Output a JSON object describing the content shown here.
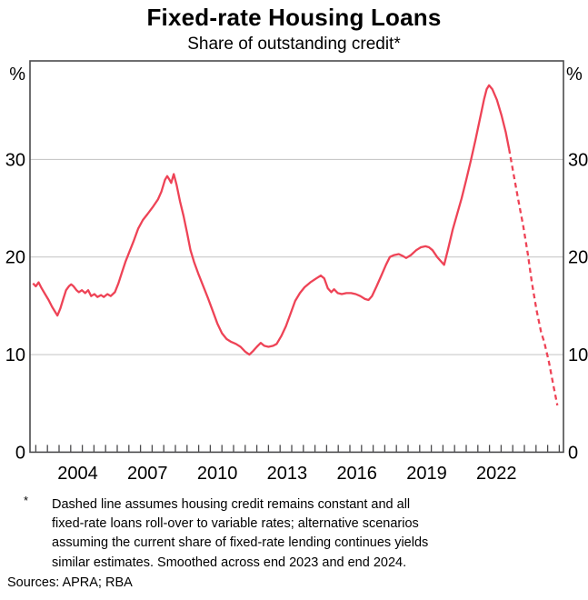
{
  "header": {
    "title": "Fixed-rate Housing Loans",
    "subtitle": "Share of outstanding credit*"
  },
  "chart_data": {
    "type": "line",
    "title": "Fixed-rate Housing Loans",
    "subtitle": "Share of outstanding credit*",
    "unit_label": "%",
    "xlabel": "",
    "ylabel": "%",
    "x_range": [
      2002.45,
      2025.38
    ],
    "y_range": [
      0,
      40.1
    ],
    "y_gridlines": [
      10,
      20,
      30
    ],
    "y_tick_labels": [
      0,
      10,
      20,
      30
    ],
    "x_tick_labels": [
      2004,
      2007,
      2010,
      2013,
      2016,
      2019,
      2022
    ],
    "x_minor_ticks": {
      "start": 2002.7,
      "end": 2025.2,
      "step": 0.5
    },
    "grid_on": true,
    "legend": "none",
    "line_color": "#EE4356",
    "grid_color": "#C9C9C9",
    "axis_color": "#4B4B4D",
    "series": [
      {
        "name": "Fixed-rate share of outstanding housing credit (actual)",
        "style": "solid",
        "points": [
          [
            2002.58,
            17.3
          ],
          [
            2002.7,
            17.0
          ],
          [
            2002.82,
            17.4
          ],
          [
            2002.95,
            16.8
          ],
          [
            2003.1,
            16.2
          ],
          [
            2003.25,
            15.6
          ],
          [
            2003.4,
            14.9
          ],
          [
            2003.55,
            14.3
          ],
          [
            2003.63,
            14.0
          ],
          [
            2003.75,
            14.7
          ],
          [
            2003.88,
            15.7
          ],
          [
            2004.0,
            16.6
          ],
          [
            2004.12,
            17.0
          ],
          [
            2004.22,
            17.2
          ],
          [
            2004.32,
            17.0
          ],
          [
            2004.45,
            16.6
          ],
          [
            2004.55,
            16.4
          ],
          [
            2004.68,
            16.6
          ],
          [
            2004.82,
            16.3
          ],
          [
            2004.95,
            16.6
          ],
          [
            2005.08,
            16.0
          ],
          [
            2005.22,
            16.2
          ],
          [
            2005.35,
            15.9
          ],
          [
            2005.5,
            16.1
          ],
          [
            2005.62,
            15.9
          ],
          [
            2005.78,
            16.2
          ],
          [
            2005.92,
            16.0
          ],
          [
            2006.1,
            16.4
          ],
          [
            2006.25,
            17.3
          ],
          [
            2006.4,
            18.4
          ],
          [
            2006.55,
            19.5
          ],
          [
            2006.7,
            20.4
          ],
          [
            2006.9,
            21.6
          ],
          [
            2007.1,
            22.9
          ],
          [
            2007.3,
            23.8
          ],
          [
            2007.5,
            24.4
          ],
          [
            2007.75,
            25.2
          ],
          [
            2007.95,
            25.9
          ],
          [
            2008.1,
            26.7
          ],
          [
            2008.25,
            27.9
          ],
          [
            2008.35,
            28.3
          ],
          [
            2008.45,
            27.9
          ],
          [
            2008.52,
            27.6
          ],
          [
            2008.63,
            28.5
          ],
          [
            2008.75,
            27.4
          ],
          [
            2008.9,
            25.7
          ],
          [
            2009.05,
            24.2
          ],
          [
            2009.2,
            22.5
          ],
          [
            2009.35,
            20.7
          ],
          [
            2009.5,
            19.5
          ],
          [
            2009.7,
            18.2
          ],
          [
            2009.9,
            17.0
          ],
          [
            2010.1,
            15.8
          ],
          [
            2010.3,
            14.5
          ],
          [
            2010.5,
            13.2
          ],
          [
            2010.7,
            12.2
          ],
          [
            2010.9,
            11.6
          ],
          [
            2011.1,
            11.3
          ],
          [
            2011.3,
            11.1
          ],
          [
            2011.5,
            10.8
          ],
          [
            2011.7,
            10.3
          ],
          [
            2011.88,
            10.0
          ],
          [
            2012.05,
            10.4
          ],
          [
            2012.2,
            10.8
          ],
          [
            2012.37,
            11.2
          ],
          [
            2012.52,
            10.9
          ],
          [
            2012.7,
            10.8
          ],
          [
            2012.9,
            10.9
          ],
          [
            2013.05,
            11.1
          ],
          [
            2013.25,
            11.9
          ],
          [
            2013.45,
            12.9
          ],
          [
            2013.65,
            14.2
          ],
          [
            2013.85,
            15.5
          ],
          [
            2014.05,
            16.3
          ],
          [
            2014.25,
            16.9
          ],
          [
            2014.5,
            17.4
          ],
          [
            2014.75,
            17.8
          ],
          [
            2014.95,
            18.1
          ],
          [
            2015.1,
            17.8
          ],
          [
            2015.25,
            16.8
          ],
          [
            2015.4,
            16.4
          ],
          [
            2015.52,
            16.7
          ],
          [
            2015.68,
            16.3
          ],
          [
            2015.85,
            16.2
          ],
          [
            2016.05,
            16.3
          ],
          [
            2016.25,
            16.3
          ],
          [
            2016.45,
            16.2
          ],
          [
            2016.65,
            16.0
          ],
          [
            2016.85,
            15.7
          ],
          [
            2017.0,
            15.6
          ],
          [
            2017.15,
            16.0
          ],
          [
            2017.35,
            17.0
          ],
          [
            2017.55,
            18.1
          ],
          [
            2017.75,
            19.2
          ],
          [
            2017.92,
            20.0
          ],
          [
            2018.1,
            20.2
          ],
          [
            2018.3,
            20.3
          ],
          [
            2018.48,
            20.1
          ],
          [
            2018.62,
            19.9
          ],
          [
            2018.82,
            20.2
          ],
          [
            2019.05,
            20.7
          ],
          [
            2019.25,
            21.0
          ],
          [
            2019.45,
            21.1
          ],
          [
            2019.6,
            21.0
          ],
          [
            2019.75,
            20.7
          ],
          [
            2019.95,
            20.0
          ],
          [
            2020.1,
            19.6
          ],
          [
            2020.25,
            19.2
          ],
          [
            2020.42,
            20.8
          ],
          [
            2020.62,
            22.8
          ],
          [
            2020.82,
            24.5
          ],
          [
            2021.0,
            26.0
          ],
          [
            2021.2,
            27.9
          ],
          [
            2021.4,
            29.9
          ],
          [
            2021.6,
            32.0
          ],
          [
            2021.8,
            34.3
          ],
          [
            2021.97,
            36.2
          ],
          [
            2022.08,
            37.2
          ],
          [
            2022.18,
            37.6
          ],
          [
            2022.32,
            37.2
          ],
          [
            2022.52,
            36.1
          ],
          [
            2022.72,
            34.5
          ],
          [
            2022.9,
            32.8
          ],
          [
            2023.04,
            31.1
          ]
        ]
      },
      {
        "name": "Projection assuming fixed-rate loans roll over to variable",
        "style": "dashed",
        "points": [
          [
            2023.04,
            31.1
          ],
          [
            2023.25,
            28.3
          ],
          [
            2023.45,
            25.7
          ],
          [
            2023.65,
            23.2
          ],
          [
            2023.85,
            20.3
          ],
          [
            2024.02,
            17.4
          ],
          [
            2024.22,
            14.6
          ],
          [
            2024.42,
            12.3
          ],
          [
            2024.55,
            11.3
          ],
          [
            2024.75,
            9.3
          ],
          [
            2024.95,
            6.8
          ],
          [
            2025.12,
            4.8
          ]
        ]
      }
    ]
  },
  "footnote": {
    "marker": "*",
    "lines": [
      "Dashed line assumes housing credit remains constant and all",
      "fixed-rate loans roll-over to variable rates; alternative scenarios",
      "assuming the current share of fixed-rate lending continues yields",
      "similar estimates. Smoothed across end 2023 and end 2024."
    ],
    "sources": "Sources: APRA; RBA"
  }
}
